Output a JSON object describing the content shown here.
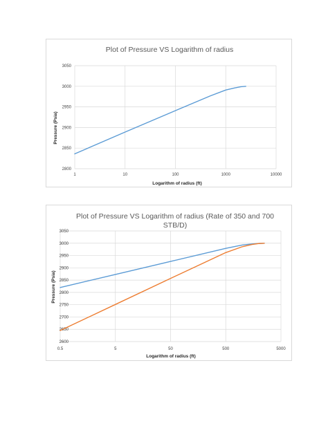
{
  "charts": [
    {
      "title": "Plot of Pressure VS Logarithm of radius",
      "xlabel": "Logarithm of radius (ft)",
      "ylabel": "Pressure (Psia)",
      "x_ticks": [
        "1",
        "10",
        "100",
        "1000",
        "10000"
      ],
      "y_ticks": [
        "2800",
        "2850",
        "2900",
        "2950",
        "3000",
        "3050"
      ]
    },
    {
      "title_lines": [
        "Plot of Pressure VS Logarithm of radius (Rate of 350 and 700",
        "STB/D)"
      ],
      "xlabel": "Logarithm of radius (ft)",
      "ylabel": "Pressure (Psia)",
      "x_ticks": [
        "0.5",
        "5",
        "50",
        "500",
        "5000"
      ],
      "y_ticks": [
        "2600",
        "2650",
        "2700",
        "2750",
        "2800",
        "2850",
        "2900",
        "2950",
        "3000",
        "3050"
      ]
    }
  ],
  "chart_data": [
    {
      "type": "line",
      "title": "Plot of Pressure VS Logarithm of radius",
      "xlabel": "Logarithm of radius (ft)",
      "ylabel": "Pressure (Psia)",
      "xscale": "log",
      "xlim": [
        1,
        10000
      ],
      "ylim": [
        2800,
        3050
      ],
      "grid": true,
      "series": [
        {
          "color": "#5b9bd5",
          "x": [
            1,
            10,
            100,
            500,
            1000,
            1500,
            2000,
            2500
          ],
          "y": [
            2836,
            2889,
            2941,
            2977,
            2991,
            2996,
            2999,
            3000
          ]
        }
      ]
    },
    {
      "type": "line",
      "title": "Plot of Pressure VS Logarithm of radius (Rate of 350 and 700 STB/D)",
      "xlabel": "Logarithm of radius (ft)",
      "ylabel": "Pressure (Psia)",
      "xscale": "log",
      "xlim": [
        0.5,
        5000
      ],
      "ylim": [
        2600,
        3050
      ],
      "grid": true,
      "series": [
        {
          "color": "#5b9bd5",
          "x": [
            0.5,
            5,
            50,
            500,
            1000,
            1500,
            2000,
            2500
          ],
          "y": [
            2820,
            2873,
            2926,
            2979,
            2993,
            2997,
            2999,
            3000
          ]
        },
        {
          "color": "#ed7d31",
          "x": [
            0.5,
            5,
            50,
            500,
            1000,
            1500,
            2000,
            2500
          ],
          "y": [
            2645,
            2751,
            2857,
            2962,
            2986,
            2995,
            2999,
            3000
          ]
        }
      ]
    }
  ]
}
